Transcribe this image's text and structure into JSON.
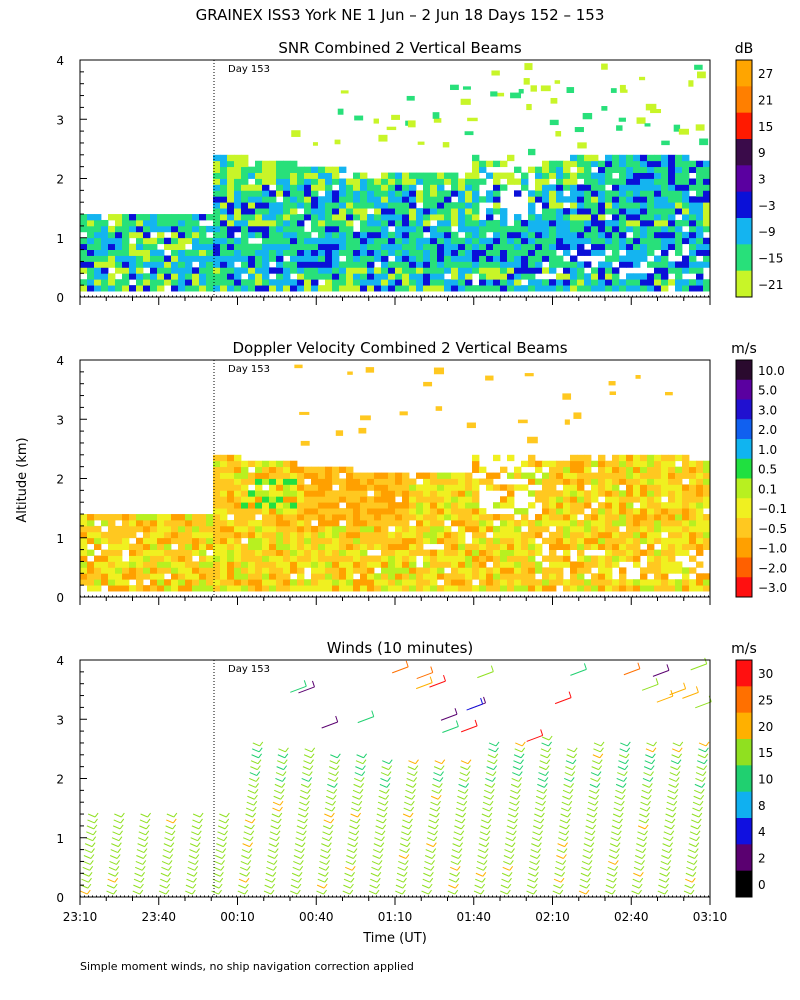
{
  "title": "GRAINEX ISS3 York NE    1 Jun  –  2 Jun 18 Days 152 – 153",
  "ylabel": "Altitude (km)",
  "footnote": "Simple moment winds, no ship navigation correction applied",
  "chart_data": [
    {
      "type": "heatmap",
      "title": "SNR Combined 2 Vertical Beams",
      "xlabel": "",
      "ylabel": "Altitude (km)",
      "ylim": [
        0,
        4
      ],
      "yticks": [
        "0",
        "1",
        "2",
        "3",
        "4"
      ],
      "day_marker": "Day 153",
      "colorbar": {
        "unit": "dB",
        "labels": [
          "27",
          "21",
          "15",
          "9",
          "3",
          "−3",
          "−9",
          "−15",
          "−21"
        ],
        "colors": [
          "#ffa500",
          "#ff7f00",
          "#ff1a00",
          "#3a0b4a",
          "#5a00a0",
          "#0a10d8",
          "#14b4f0",
          "#28e07a",
          "#c8f528"
        ]
      }
    },
    {
      "type": "heatmap",
      "title": "Doppler Velocity Combined 2 Vertical Beams",
      "xlabel": "",
      "ylabel": "Altitude (km)",
      "ylim": [
        0,
        4
      ],
      "yticks": [
        "0",
        "1",
        "2",
        "3",
        "4"
      ],
      "day_marker": "Day 153",
      "colorbar": {
        "unit": "m/s",
        "labels": [
          "10.0",
          "5.0",
          "3.0",
          "2.0",
          "1.0",
          "0.5",
          "0.1",
          "−0.1",
          "−0.5",
          "−1.0",
          "−2.0",
          "−3.0"
        ],
        "colors": [
          "#2a0a2e",
          "#5a00a0",
          "#2010d0",
          "#1060f0",
          "#10b4f0",
          "#20e040",
          "#b8f020",
          "#f0f020",
          "#ffc820",
          "#ffa000",
          "#ff6000",
          "#ff1010"
        ]
      }
    },
    {
      "type": "scatter",
      "title": "Winds (10 minutes)",
      "xlabel": "Time (UT)",
      "ylabel": "Altitude (km)",
      "ylim": [
        0,
        4
      ],
      "yticks": [
        "0",
        "1",
        "2",
        "3",
        "4"
      ],
      "xticks": [
        "23:10",
        "23:40",
        "00:10",
        "00:40",
        "01:10",
        "01:40",
        "02:10",
        "02:40",
        "03:10"
      ],
      "day_marker": "Day 153",
      "colorbar": {
        "unit": "m/s",
        "labels": [
          "30",
          "25",
          "20",
          "15",
          "10",
          "8",
          "4",
          "2",
          "0"
        ],
        "colors": [
          "#ff1010",
          "#ff7000",
          "#ffb000",
          "#90e020",
          "#20d070",
          "#10b0f0",
          "#1010e0",
          "#5a0070",
          "#000000"
        ]
      },
      "profiles_minutes_utc": [
        "23:10",
        "23:20",
        "23:30",
        "23:40",
        "23:50",
        "00:00",
        "00:10",
        "00:20",
        "00:30",
        "00:40",
        "00:50",
        "01:00",
        "01:10",
        "01:20",
        "01:30",
        "01:40",
        "01:50",
        "02:00",
        "02:10",
        "02:20",
        "02:30",
        "02:40",
        "02:50",
        "03:00"
      ]
    }
  ]
}
